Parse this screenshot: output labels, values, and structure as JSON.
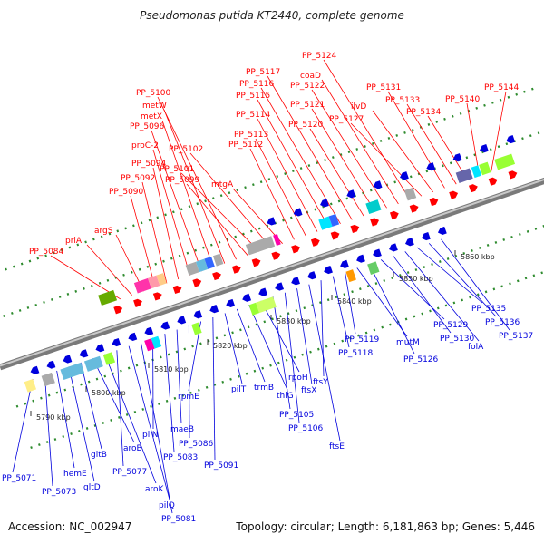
{
  "title": "Pseudomonas putida KT2440, complete genome",
  "footer": {
    "accession": "Accession: NC_002947",
    "summary": "Topology: circular; Length: 6,181,863 bp; Genes: 5,446"
  },
  "colors": {
    "forward": "#ff0000",
    "reverse": "#0000dd",
    "backbone": "#888888",
    "tick": "#2e8b2e"
  },
  "ticks": [
    "5790 kbp",
    "5800 kbp",
    "5810 kbp",
    "5820 kbp",
    "5830 kbp",
    "5840 kbp",
    "5850 kbp",
    "5860 kbp"
  ],
  "forward_genes": [
    "PP_5084",
    "priA",
    "argS",
    "PP_5090",
    "PP_5092",
    "PP_5094",
    "proC-2",
    "PP_5096",
    "metX",
    "metW",
    "PP_5100",
    "PP_5099",
    "PP_5101",
    "PP_5102",
    "mtgA",
    "PP_5112",
    "PP_5113",
    "PP_5114",
    "PP_5115",
    "PP_5116",
    "PP_5117",
    "PP_5120",
    "PP_5121",
    "PP_5122",
    "coaD",
    "PP_5124",
    "PP_5127",
    "ilvD",
    "PP_5131",
    "PP_5133",
    "PP_5134",
    "PP_5140",
    "PP_5144"
  ],
  "reverse_genes": [
    "PP_5071",
    "PP_5073",
    "hemE",
    "gltD",
    "gltB",
    "aroB",
    "aroK",
    "PP_5077",
    "pilQ",
    "PP_5081",
    "pilN",
    "PP_5083",
    "maeB",
    "PP_5086",
    "rpmE",
    "PP_5091",
    "pilT",
    "trmB",
    "thiG",
    "rpoH",
    "PP_5105",
    "PP_5106",
    "ftsX",
    "ftsE",
    "ftsY",
    "PP_5118",
    "PP_5119",
    "mutM",
    "PP_5126",
    "PP_5129",
    "PP_5130",
    "folA",
    "PP_5135",
    "PP_5136",
    "PP_5137"
  ]
}
